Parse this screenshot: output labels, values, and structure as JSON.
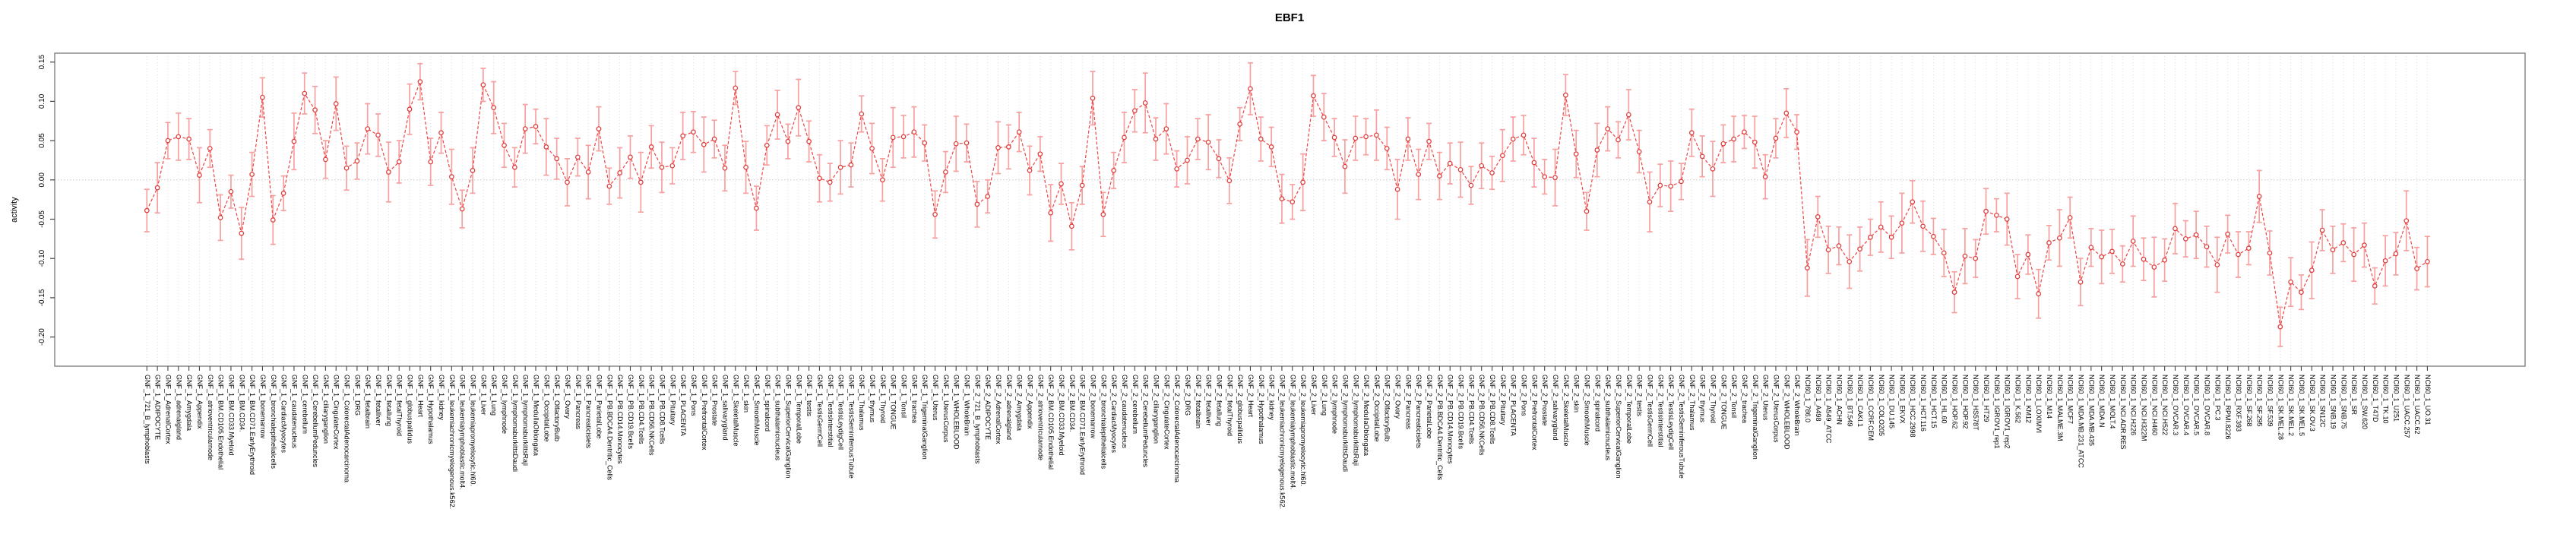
{
  "chart_data": {
    "type": "scatter",
    "title": "EBF1",
    "xlabel": "",
    "ylabel": "activity",
    "legend": null,
    "grid": "vertical dotted gridline at every sample; horizontal dotted line at zero",
    "ylim": [
      -0.237,
      0.162
    ],
    "y_axis": {
      "ticks": [
        0.15,
        0.1,
        0.05,
        0.0,
        -0.05,
        -0.1,
        -0.15,
        -0.2
      ],
      "tick_labels": [
        "0.15",
        "0.10",
        "0.05",
        "0.00",
        "-0.05",
        "-0.10",
        "-0.15",
        "-0.20"
      ]
    },
    "colors": {
      "line": "#ee4444",
      "marker_stroke": "#e03c3c",
      "marker_fill": "#ffffff",
      "error_bar": "#f6a0a0",
      "frame": "#8a8a8a",
      "gridline": "#dcdcdc",
      "zero_line": "#c9c9c9",
      "tick": "#444444"
    },
    "error_bar_half_lengths_cycle": [
      0.027,
      0.032,
      0.023,
      0.03,
      0.026,
      0.035,
      0.024,
      0.029,
      0.021,
      0.033,
      0.028,
      0.025,
      0.031,
      0.022,
      0.036,
      0.026,
      0.03,
      0.024,
      0.034,
      0.028,
      0.023,
      0.032,
      0.027,
      0.038
    ],
    "sections": [
      {
        "prefix": "GNF_1_",
        "samples": [
          "721_B_lymphoblasts",
          "ADIPOCYTE",
          "AdrenalCortex",
          "adrenalgland",
          "Amygdala",
          "Appendix",
          "atrioventricularnode",
          "BM.CD105.Endothelial",
          "BM.CD33.Myeloid",
          "BM.CD34.",
          "BM.CD71.EarlyErythroid",
          "bonemarrow",
          "bronchialepithelialcells",
          "CardiacMyocytes",
          "caudatenucleus",
          "cerebellum",
          "CerebellumPeduncles",
          "ciliaryganglion",
          "CingulateCortex",
          "ColorectalAdenocarcinoma",
          "DRG",
          "fetalbrain",
          "fetalliver",
          "fetallung",
          "fetalThyroid",
          "globuspallidus",
          "Heart",
          "Hypothalamus",
          "kidney",
          "leukemiachronicmyelogenous.k562.",
          "leukemialymphoblastic.molt4.",
          "leukemiapromyelocytic.hl60.",
          "Liver",
          "Lung",
          "lymphnode",
          "lymphomaburkittsDaudi",
          "lymphomaburkittsRaji",
          "MedullaOblongata",
          "OccipitalLobe",
          "OlfactoryBulb",
          "Ovary",
          "Pancreas",
          "Pancreaticislets",
          "ParietalLobe",
          "PB.BDCA4.Dentritic_Cells",
          "PB.CD14.Monocytes",
          "PB.CD19.Bcells",
          "PB.CD4.Tcells",
          "PB.CD56.NKCells",
          "PB.CD8.Tcells",
          "Pituitary",
          "PLACENTA",
          "Pons",
          "PrefrontalCortex",
          "Prostate",
          "salivarygland",
          "SkeletalMuscle",
          "skin",
          "SmoothMuscle",
          "spinalcord",
          "subthalamicnucleus",
          "SuperiorCervicalGanglion",
          "TemporalLobe",
          "testis",
          "TestisGermCell",
          "TestisInterstitial",
          "TestisLeydigCell",
          "TestisSeminiferousTubule",
          "Thalamus",
          "thymus",
          "Thyroid",
          "TONGUE",
          "Tonsil",
          "trachea",
          "TrigeminalGanglion",
          "Uterus",
          "UterusCorpus",
          "WHOLEBLOOD",
          "WholeBrain"
        ],
        "values": [
          -0.039,
          -0.01,
          0.05,
          0.055,
          0.052,
          0.006,
          0.04,
          -0.048,
          -0.015,
          -0.068,
          0.007,
          0.105,
          -0.051,
          -0.017,
          0.049,
          0.11,
          0.089,
          0.026,
          0.097,
          0.015,
          0.024,
          0.065,
          0.057,
          0.01,
          0.023,
          0.09,
          0.125,
          0.023,
          0.06,
          0.004,
          -0.037,
          0.012,
          0.121,
          0.092,
          0.044,
          0.016,
          0.065,
          0.068,
          0.042,
          0.027,
          -0.003,
          0.029,
          0.01,
          0.065,
          -0.008,
          0.009,
          0.029,
          -0.003,
          0.042,
          0.016,
          0.018,
          0.056,
          0.061,
          0.045,
          0.052,
          0.015,
          0.117,
          0.016,
          -0.036,
          0.044,
          0.083,
          0.049,
          0.092,
          0.049,
          0.002,
          -0.003,
          0.016,
          0.019,
          0.084,
          0.04,
          0.0,
          0.054,
          0.055,
          0.061,
          0.047,
          -0.044,
          0.01,
          0.046,
          0.047
        ]
      },
      {
        "prefix": "GNF_2_",
        "samples": [
          "721_B_lymphoblasts",
          "ADIPOCYTE",
          "AdrenalCortex",
          "adrenalgland",
          "Amygdala",
          "Appendix",
          "atrioventricularnode",
          "BM.CD105.Endothelial",
          "BM.CD33.Myeloid",
          "BM.CD34.",
          "BM.CD71.EarlyErythroid",
          "bonemarrow",
          "bronchialepithelialcells",
          "CardiacMyocytes",
          "caudatenucleus",
          "cerebellum",
          "CerebellumPeduncles",
          "ciliaryganglion",
          "CingulateCortex",
          "ColorectalAdenocarcinoma",
          "DRG",
          "fetalbrain",
          "fetalliver",
          "fetallung",
          "fetalThyroid",
          "globuspallidus",
          "Heart",
          "Hypothalamus",
          "kidney",
          "leukemiachronicmyelogenous.k562.",
          "leukemialymphoblastic.molt4.",
          "leukemiapromyelocytic.hl60.",
          "Liver",
          "Lung",
          "lymphnode",
          "lymphomaburkittsDaudi",
          "lymphomaburkittsRaji",
          "MedullaOblongata",
          "OccipitalLobe",
          "OlfactoryBulb",
          "Ovary",
          "Pancreas",
          "Pancreaticislets",
          "ParietalLobe",
          "PB.BDCA4.Dentritic_Cells",
          "PB.CD14.Monocytes",
          "PB.CD19.Bcells",
          "PB.CD4.Tcells",
          "PB.CD56.NKCells",
          "PB.CD8.Tcells",
          "Pituitary",
          "PLACENTA",
          "Pons",
          "PrefrontalCortex",
          "Prostate",
          "salivarygland",
          "SkeletalMuscle",
          "skin",
          "SmoothMuscle",
          "spinalcord",
          "subthalamicnucleus",
          "SuperiorCervicalGanglion",
          "TemporalLobe",
          "testis",
          "TestisGermCell",
          "TestisInterstitial",
          "TestisLeydigCell",
          "TestisSeminiferousTubule",
          "Thalamus",
          "thymus",
          "Thyroid",
          "TONGUE",
          "Tonsil",
          "trachea",
          "TrigeminalGanglion",
          "Uterus",
          "UterusCorpus",
          "WHOLEBLOOD",
          "WholeBrain"
        ],
        "values": [
          -0.031,
          -0.021,
          0.041,
          0.042,
          0.061,
          0.012,
          0.033,
          -0.042,
          -0.005,
          -0.059,
          -0.007,
          0.104,
          -0.044,
          0.012,
          0.054,
          0.088,
          0.098,
          0.052,
          0.065,
          0.014,
          0.025,
          0.052,
          0.048,
          0.027,
          -0.001,
          0.071,
          0.116,
          0.052,
          0.042,
          -0.024,
          -0.028,
          -0.003,
          0.107,
          0.08,
          0.054,
          0.017,
          0.053,
          0.055,
          0.057,
          0.04,
          -0.012,
          0.052,
          0.007,
          0.049,
          0.005,
          0.021,
          0.013,
          -0.007,
          0.018,
          0.009,
          0.031,
          0.052,
          0.057,
          0.022,
          0.004,
          0.003,
          0.108,
          0.033,
          -0.04,
          0.038,
          0.065,
          0.051,
          0.083,
          0.036,
          -0.028,
          -0.007,
          -0.008,
          -0.002,
          0.06,
          0.03,
          0.014,
          0.046,
          0.052,
          0.061,
          0.048,
          0.004,
          0.053,
          0.085,
          0.061
        ]
      },
      {
        "prefix": "NCI60_1_",
        "samples": [
          "786.0",
          "A498",
          "A549_ATCC",
          "ACHN",
          "BT.549",
          "CAKI.1",
          "CCRF.CEM",
          "COLO205",
          "DU.145",
          "EKVX",
          "HCC.2998",
          "HCT.116",
          "HCT.15",
          "HL.60",
          "HOP.62",
          "HOP.92",
          "HS578T",
          "HT29",
          "IGROV1_rep1",
          "IGROV1_rep2",
          "K.562",
          "KM12",
          "LOXIMVI",
          "M14",
          "MALME.3M",
          "MCF7",
          "MDA.MB.231_ATCC",
          "MDA.MB.435",
          "MDA.N",
          "MOLT.4",
          "NCI.ADR.RES",
          "NCI.H226",
          "NCI.H322M",
          "NCI.H460",
          "NCI.H522",
          "OVCAR.3",
          "OVCAR.4",
          "OVCAR.5",
          "OVCAR.8",
          "PC.3",
          "RPMI.8226",
          "RXF.393",
          "SF.268",
          "SF.295",
          "SF.539",
          "SK.MEL.28",
          "SK.MEL.2",
          "SK.MEL.5",
          "SK.OV.3",
          "SN12C",
          "SNB.19",
          "SNB.75",
          "SR",
          "SW.620",
          "T47D",
          "TK.10",
          "U251",
          "UACC.257",
          "UACC.62",
          "UO.31"
        ],
        "values": [
          -0.112,
          -0.047,
          -0.089,
          -0.084,
          -0.104,
          -0.088,
          -0.073,
          -0.06,
          -0.073,
          -0.055,
          -0.028,
          -0.059,
          -0.072,
          -0.093,
          -0.143,
          -0.097,
          -0.1,
          -0.04,
          -0.045,
          -0.05,
          -0.123,
          -0.095,
          -0.145,
          -0.08,
          -0.074,
          -0.048,
          -0.13,
          -0.086,
          -0.098,
          -0.091,
          -0.107,
          -0.078,
          -0.101,
          -0.111,
          -0.102,
          -0.062,
          -0.075,
          -0.07,
          -0.085,
          -0.108,
          -0.069,
          -0.095,
          -0.087,
          -0.021,
          -0.093,
          -0.187,
          -0.13,
          -0.143,
          -0.115,
          -0.064,
          -0.089,
          -0.08,
          -0.095,
          -0.083,
          -0.135,
          -0.103,
          -0.094,
          -0.052,
          -0.113,
          -0.104
        ]
      }
    ]
  }
}
